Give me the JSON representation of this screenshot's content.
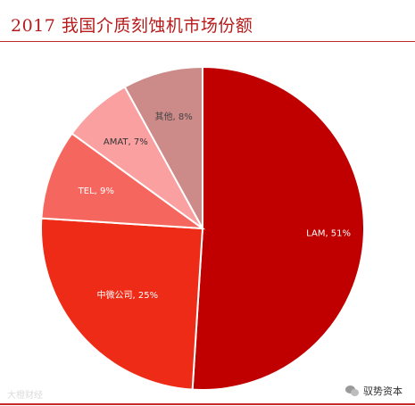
{
  "title": "2017 我国介质刻蚀机市场份额",
  "chart_data": {
    "type": "pie",
    "title": "2017 我国介质刻蚀机市场份额",
    "slices": [
      {
        "label": "LAM, 51%",
        "name": "LAM",
        "value": 51,
        "color": "#c00000",
        "text_color": "#ffffff"
      },
      {
        "label": "中微公司, 25%",
        "name": "中微公司",
        "value": 25,
        "color": "#ee2b16",
        "text_color": "#ffffff"
      },
      {
        "label": "TEL, 9%",
        "name": "TEL",
        "value": 9,
        "color": "#f5675e",
        "text_color": "#ffffff"
      },
      {
        "label": "AMAT, 7%",
        "name": "AMAT",
        "value": 7,
        "color": "#fba0a1",
        "text_color": "#333333"
      },
      {
        "label": "其他, 8%",
        "name": "其他",
        "value": 8,
        "color": "#cc8a88",
        "text_color": "#444444"
      }
    ]
  },
  "watermark_left": "大橙财经",
  "watermark_right": "驭势资本",
  "icons": {
    "wechat": "wechat-icon"
  }
}
